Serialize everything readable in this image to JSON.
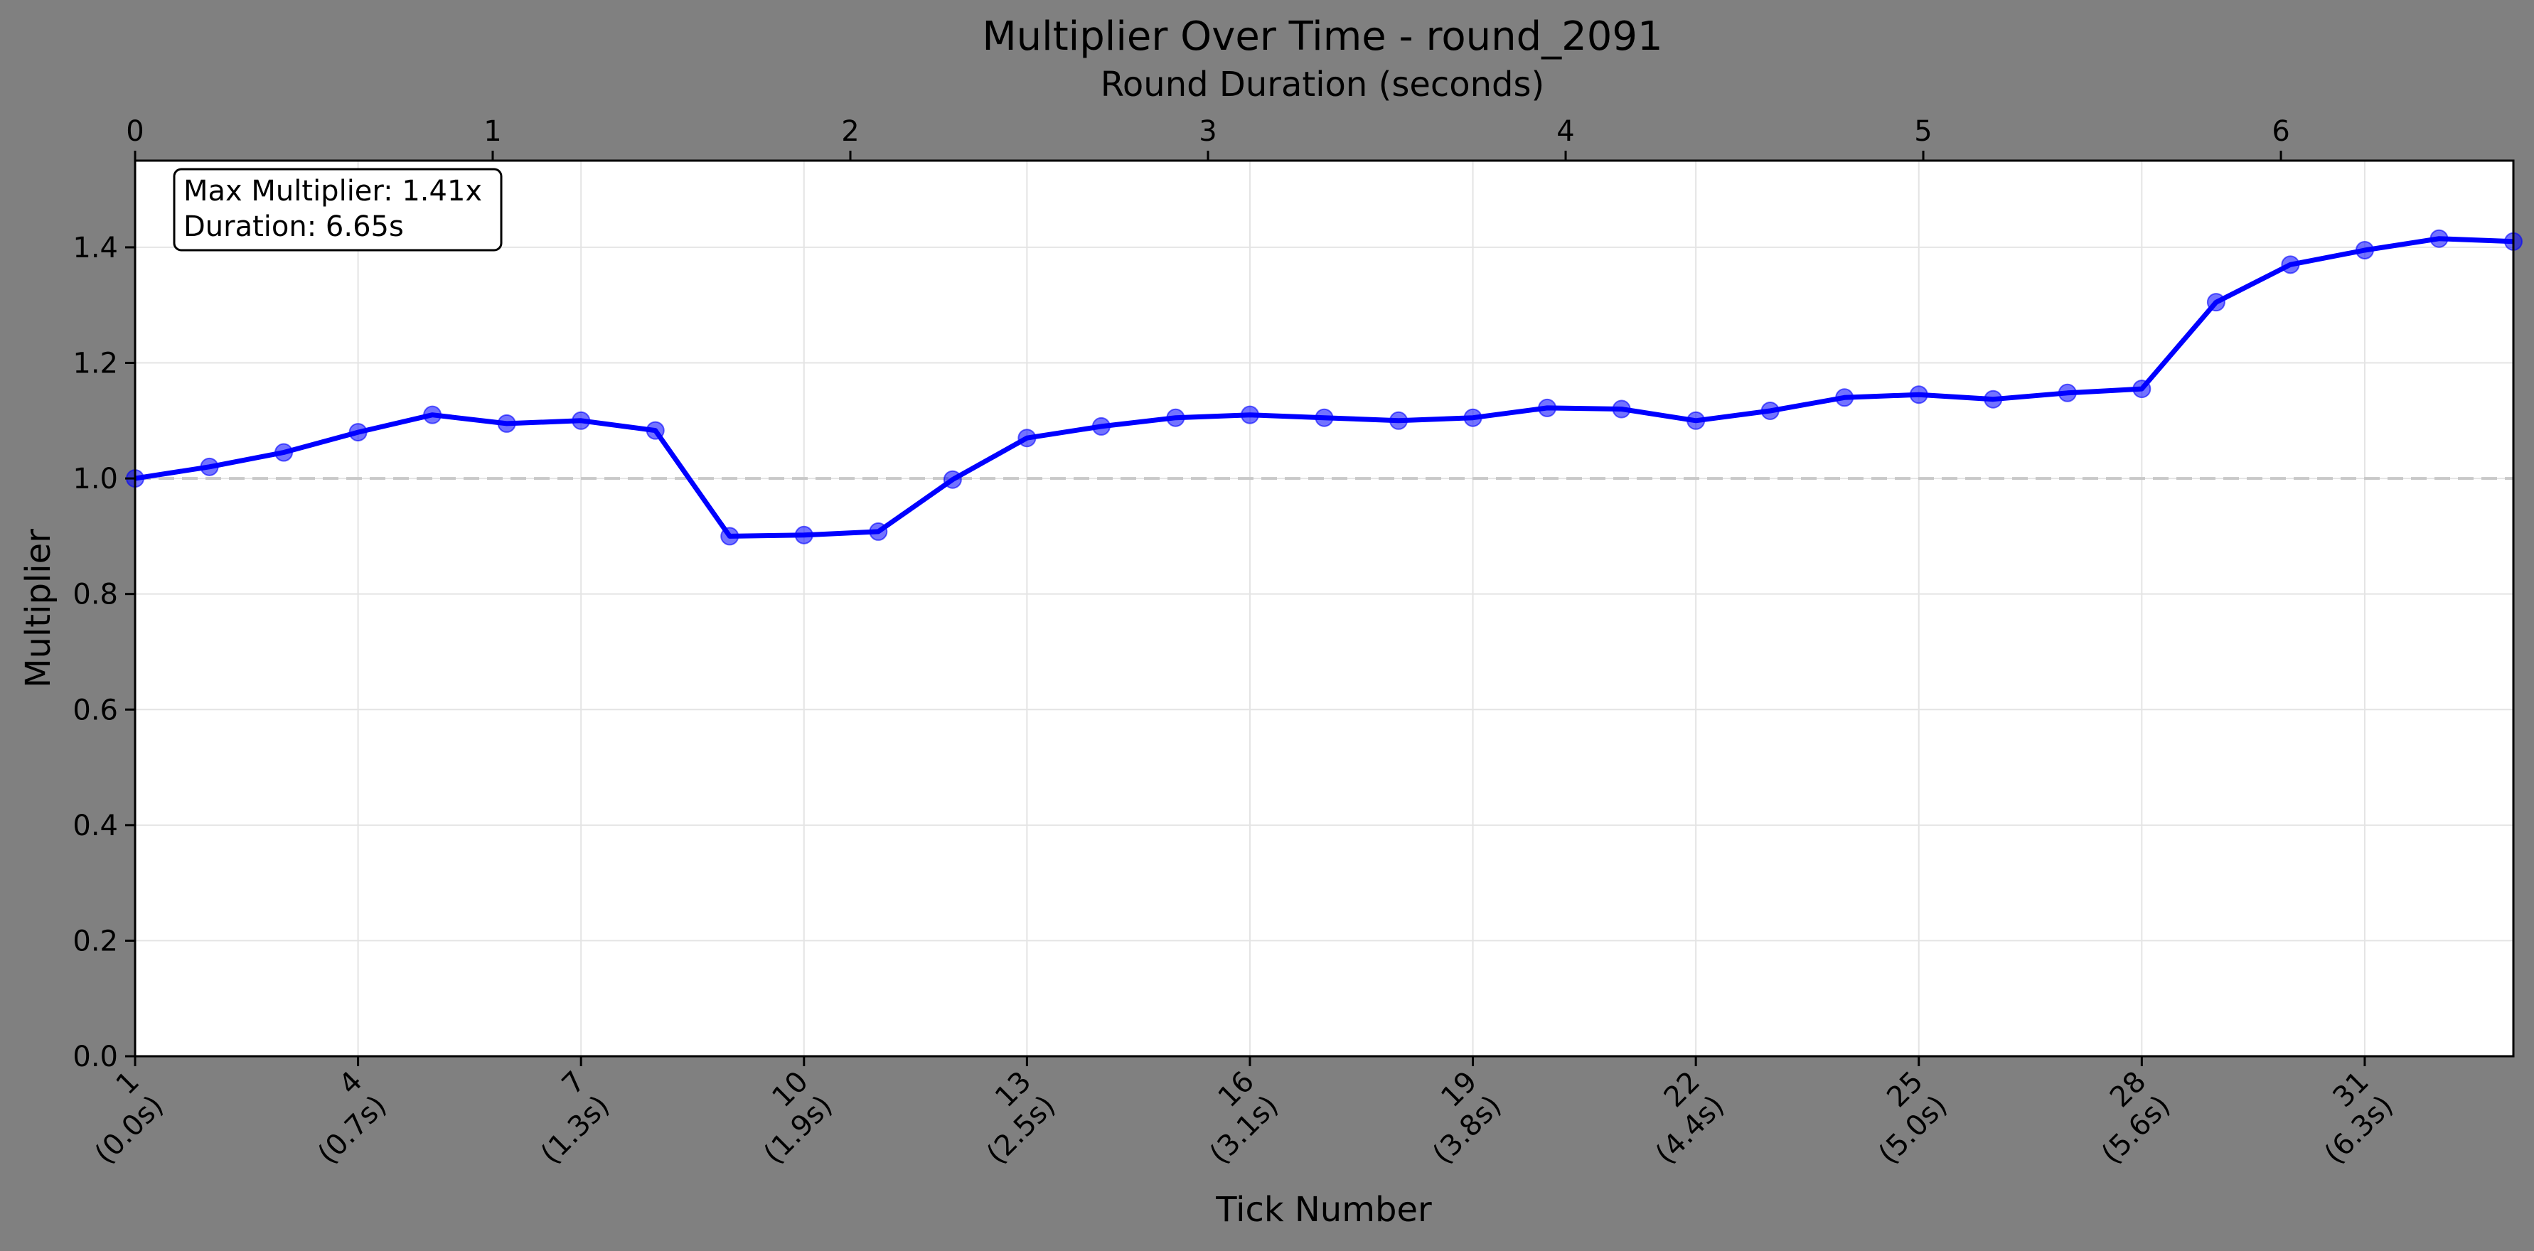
{
  "chart_data": {
    "type": "line",
    "title": "Multiplier Over Time - round_2091",
    "xlabel": "Tick Number",
    "ylabel": "Multiplier",
    "x2label": "Round Duration (seconds)",
    "x": [
      1,
      2,
      3,
      4,
      5,
      6,
      7,
      8,
      9,
      10,
      11,
      12,
      13,
      14,
      15,
      16,
      17,
      18,
      19,
      20,
      21,
      22,
      23,
      24,
      25,
      26,
      27,
      28,
      29,
      30,
      31,
      32,
      33
    ],
    "series": [
      {
        "values": [
          1.0,
          1.02,
          1.045,
          1.08,
          1.11,
          1.095,
          1.1,
          1.083,
          0.9,
          0.902,
          0.908,
          0.998,
          1.07,
          1.09,
          1.105,
          1.11,
          1.105,
          1.1,
          1.105,
          1.122,
          1.12,
          1.1,
          1.117,
          1.14,
          1.145,
          1.137,
          1.148,
          1.155,
          1.305,
          1.37,
          1.395,
          1.415,
          1.41
        ],
        "color": "#0000ff"
      }
    ],
    "xlim": [
      1,
      33.0
    ],
    "ylim": [
      0.0,
      1.55
    ],
    "xticks": [
      1,
      4,
      7,
      10,
      13,
      16,
      19,
      22,
      25,
      28,
      31
    ],
    "xtick_labels_line1": [
      "1",
      "4",
      "7",
      "10",
      "13",
      "16",
      "19",
      "22",
      "25",
      "28",
      "31"
    ],
    "xtick_labels_line2": [
      "(0.0s)",
      "(0.7s)",
      "(1.3s)",
      "(1.9s)",
      "(2.5s)",
      "(3.1s)",
      "(3.8s)",
      "(4.4s)",
      "(5.0s)",
      "(5.6s)",
      "(6.3s)"
    ],
    "yticks": [
      0.0,
      0.2,
      0.4,
      0.6,
      0.8,
      1.0,
      1.2,
      1.4
    ],
    "ytick_labels": [
      "0.0",
      "0.2",
      "0.4",
      "0.6",
      "0.8",
      "1.0",
      "1.2",
      "1.4"
    ],
    "x2ticks": [
      0,
      1,
      2,
      3,
      4,
      5,
      6
    ],
    "x2tick_labels": [
      "0",
      "1",
      "2",
      "3",
      "4",
      "5",
      "6"
    ],
    "x2lim": [
      0,
      6.65
    ],
    "reference_line": {
      "y": 1.0,
      "style": "dashed",
      "color": "#c8c8c8"
    },
    "grid": true,
    "annotation": {
      "line1": "Max Multiplier: 1.41x",
      "line2": "Duration: 6.65s"
    }
  }
}
